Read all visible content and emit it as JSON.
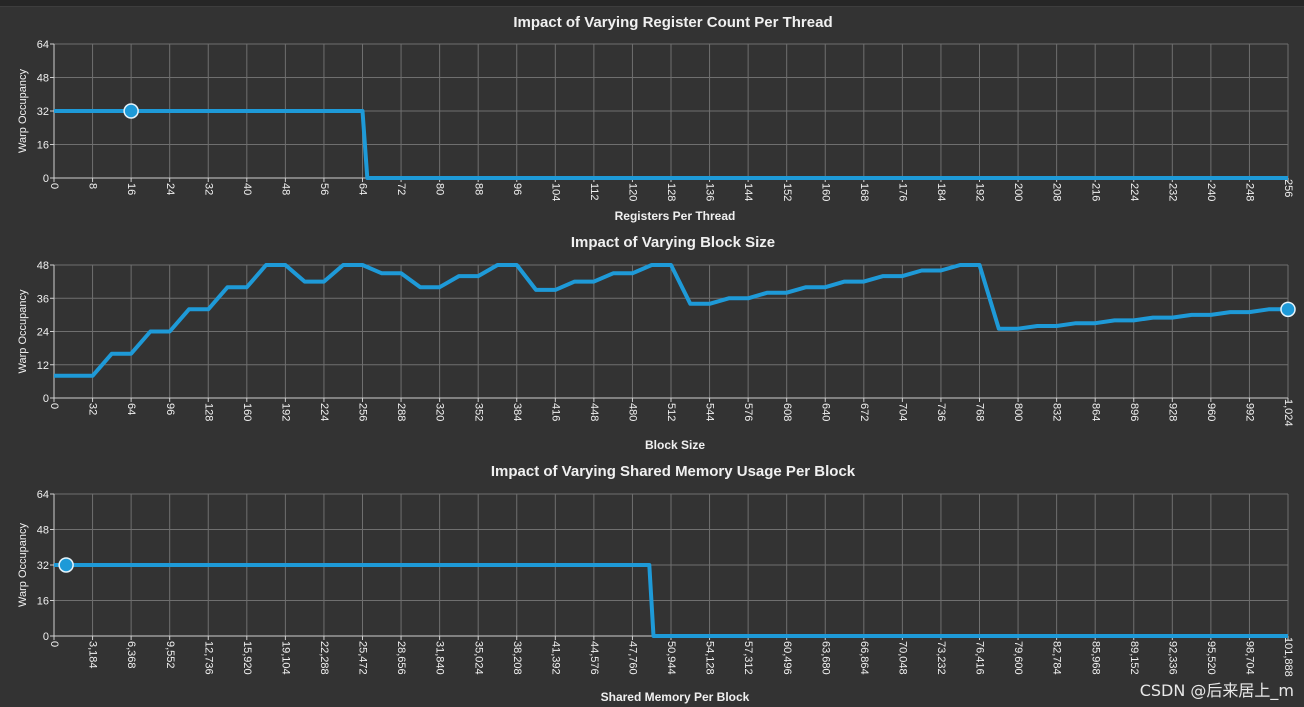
{
  "watermark": "CSDN @后来居上_m",
  "chart_data": [
    {
      "type": "line",
      "title": "Impact of Varying Register Count Per Thread",
      "xlabel": "Registers Per Thread",
      "ylabel": "Warp Occupancy",
      "xlim": [
        0,
        256
      ],
      "ylim": [
        0,
        64
      ],
      "yticks": [
        0,
        16,
        32,
        48,
        64
      ],
      "xticks": [
        "0",
        "8",
        "16",
        "24",
        "32",
        "40",
        "48",
        "56",
        "64",
        "72",
        "80",
        "88",
        "96",
        "104",
        "112",
        "120",
        "128",
        "136",
        "144",
        "152",
        "160",
        "168",
        "176",
        "184",
        "192",
        "200",
        "208",
        "216",
        "224",
        "232",
        "240",
        "248",
        "256"
      ],
      "series": [
        {
          "name": "Warp Occupancy",
          "x": [
            0,
            64,
            65,
            256
          ],
          "y": [
            32,
            32,
            0,
            0
          ]
        }
      ],
      "marker": {
        "x": 16,
        "y": 32
      },
      "grid": true
    },
    {
      "type": "line",
      "title": "Impact of Varying Block Size",
      "xlabel": "Block Size",
      "ylabel": "Warp Occupancy",
      "xlim": [
        0,
        1024
      ],
      "ylim": [
        0,
        48
      ],
      "yticks": [
        0,
        12,
        24,
        36,
        48
      ],
      "xticks": [
        "0",
        "32",
        "64",
        "96",
        "128",
        "160",
        "192",
        "224",
        "256",
        "288",
        "320",
        "352",
        "384",
        "416",
        "448",
        "480",
        "512",
        "544",
        "576",
        "608",
        "640",
        "672",
        "704",
        "736",
        "768",
        "800",
        "832",
        "864",
        "896",
        "928",
        "960",
        "992",
        "1,024"
      ],
      "series": [
        {
          "name": "Warp Occupancy",
          "x": [
            0,
            32,
            48,
            64,
            80,
            96,
            112,
            128,
            144,
            160,
            176,
            192,
            208,
            224,
            240,
            256,
            272,
            288,
            304,
            320,
            336,
            352,
            368,
            384,
            400,
            416,
            432,
            448,
            464,
            480,
            496,
            512,
            528,
            544,
            560,
            576,
            592,
            608,
            624,
            640,
            656,
            672,
            688,
            704,
            720,
            736,
            752,
            768,
            784,
            800,
            816,
            832,
            848,
            864,
            880,
            896,
            912,
            928,
            944,
            960,
            976,
            992,
            1008,
            1024
          ],
          "y": [
            8,
            8,
            16,
            16,
            24,
            24,
            32,
            32,
            40,
            40,
            48,
            48,
            42,
            42,
            48,
            48,
            45,
            45,
            40,
            40,
            44,
            44,
            48,
            48,
            39,
            39,
            42,
            42,
            45,
            45,
            48,
            48,
            34,
            34,
            36,
            36,
            38,
            38,
            40,
            40,
            42,
            42,
            44,
            44,
            46,
            46,
            48,
            48,
            25,
            25,
            26,
            26,
            27,
            27,
            28,
            28,
            29,
            29,
            30,
            30,
            31,
            31,
            32,
            32
          ]
        }
      ],
      "marker": {
        "x": 1024,
        "y": 32
      },
      "grid": true
    },
    {
      "type": "line",
      "title": "Impact of Varying Shared Memory Usage Per Block",
      "xlabel": "Shared Memory Per Block",
      "ylabel": "Warp Occupancy",
      "xlim": [
        0,
        101888
      ],
      "ylim": [
        0,
        64
      ],
      "yticks": [
        0,
        16,
        32,
        48,
        64
      ],
      "xticks": [
        "0",
        "3,184",
        "6,368",
        "9,552",
        "12,736",
        "15,920",
        "19,104",
        "22,288",
        "25,472",
        "28,656",
        "31,840",
        "35,024",
        "38,208",
        "41,392",
        "44,576",
        "47,760",
        "50,944",
        "54,128",
        "57,312",
        "60,496",
        "63,680",
        "66,864",
        "70,048",
        "73,232",
        "76,416",
        "79,600",
        "82,784",
        "85,968",
        "89,152",
        "92,336",
        "95,520",
        "98,704",
        "101,888"
      ],
      "series": [
        {
          "name": "Warp Occupancy",
          "x": [
            0,
            49152,
            49500,
            101888
          ],
          "y": [
            32,
            32,
            0,
            0
          ]
        }
      ],
      "marker": {
        "x": 1000,
        "y": 32
      },
      "grid": true
    }
  ]
}
